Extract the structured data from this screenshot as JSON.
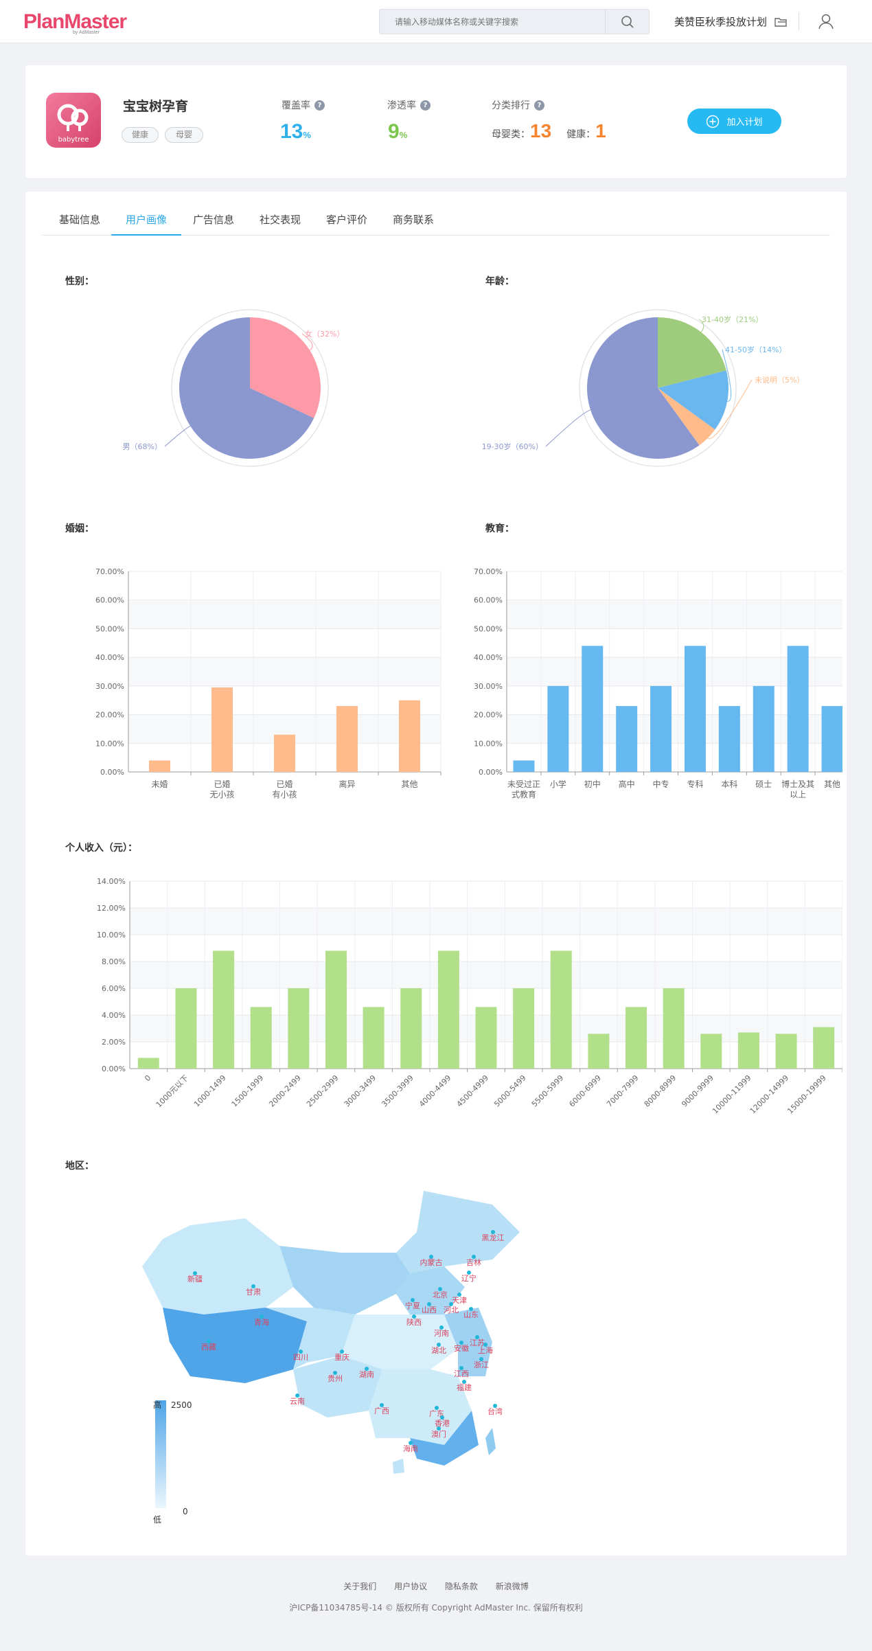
{
  "header": {
    "logo_text": "PlanMaster",
    "logo_sub": "by AdMaster",
    "search_placeholder": "请输入移动媒体名称或关键字搜索",
    "plan_link": "美赞臣秋季投放计划"
  },
  "app": {
    "name": "宝宝树孕育",
    "icon_text": "babytree",
    "tags": [
      "健康",
      "母婴"
    ],
    "coverage_label": "覆盖率",
    "coverage_value": "13",
    "penetration_label": "渗透率",
    "penetration_value": "9",
    "percent": "%",
    "rank_label": "分类排行",
    "rank_cat1": "母婴类：",
    "rank_val1": "13",
    "rank_cat2": "健康：",
    "rank_val2": "1",
    "add_button": "加入计划",
    "colors": {
      "coverage": "#2fb0ec",
      "penetration": "#7cc64e",
      "rank": "#f7842e"
    }
  },
  "tabs": [
    "基础信息",
    "用户画像",
    "广告信息",
    "社交表现",
    "客户评价",
    "商务联系"
  ],
  "active_tab": 1,
  "sections": {
    "gender": "性别：",
    "age": "年龄：",
    "marriage": "婚姻：",
    "education": "教育：",
    "income": "个人收入（元）：",
    "region": "地区："
  },
  "chart_data": [
    {
      "id": "gender",
      "type": "pie",
      "title": "性别：",
      "slices": [
        {
          "label": "女（32%）",
          "value": 32,
          "color": "#fd9aa8"
        },
        {
          "label": "男（68%）",
          "value": 68,
          "color": "#8b98d0"
        }
      ]
    },
    {
      "id": "age",
      "type": "pie",
      "title": "年龄：",
      "slices": [
        {
          "label": "31-40岁（21%）",
          "value": 21,
          "color": "#9fcb7d"
        },
        {
          "label": "41-50岁（14%）",
          "value": 14,
          "color": "#6ab7f0"
        },
        {
          "label": "未说明（5%）",
          "value": 5,
          "color": "#ffbb8a"
        },
        {
          "label": "19-30岁（60%）",
          "value": 60,
          "color": "#8b98d0"
        }
      ]
    },
    {
      "id": "marriage",
      "type": "bar",
      "title": "婚姻：",
      "categories": [
        "未婚",
        "已婚\n无小孩",
        "已婚\n有小孩",
        "离异",
        "其他"
      ],
      "values": [
        4,
        29.5,
        13,
        23,
        25
      ],
      "ylim": [
        0,
        70
      ],
      "yticks": [
        "0.00%",
        "10.00%",
        "20.00%",
        "30.00%",
        "40.00%",
        "50.00%",
        "60.00%",
        "70.00%"
      ],
      "color": "#ffbb8c"
    },
    {
      "id": "education",
      "type": "bar",
      "title": "教育：",
      "categories": [
        "未受过正\n式教育",
        "小学",
        "初中",
        "高中",
        "中专",
        "专科",
        "本科",
        "硕士",
        "博士及其\n以上",
        "其他"
      ],
      "values": [
        4,
        30,
        44,
        23,
        30,
        44,
        23,
        30,
        44,
        23
      ],
      "ylim": [
        0,
        70
      ],
      "yticks": [
        "0.00%",
        "10.00%",
        "20.00%",
        "30.00%",
        "40.00%",
        "50.00%",
        "60.00%",
        "70.00%"
      ],
      "color": "#66b8f1"
    },
    {
      "id": "income",
      "type": "bar",
      "title": "个人收入（元）：",
      "categories": [
        "0",
        "1000元以下",
        "1000-1499",
        "1500-1999",
        "2000-2499",
        "2500-2999",
        "3000-3499",
        "3500-3999",
        "4000-4499",
        "4500-4999",
        "5000-5499",
        "5500-5999",
        "6000-6999",
        "7000-7999",
        "8000-8999",
        "9000-9999",
        "10000-11999",
        "12000-14999",
        "15000-19999"
      ],
      "values": [
        0.8,
        6,
        8.8,
        4.6,
        6,
        8.8,
        4.6,
        6,
        8.8,
        4.6,
        6,
        8.8,
        2.6,
        4.6,
        6,
        2.6,
        2.7,
        2.6,
        3.1
      ],
      "ylim": [
        0,
        14
      ],
      "yticks": [
        "0.00%",
        "2.00%",
        "4.00%",
        "6.00%",
        "8.00%",
        "10.00%",
        "12.00%",
        "14.00%"
      ],
      "color": "#b2e08a"
    }
  ],
  "map": {
    "legend_high": "高",
    "legend_low": "低",
    "legend_max": "2500",
    "legend_min": "0",
    "provinces": [
      "黑龙江",
      "吉林",
      "内蒙古",
      "辽宁",
      "新疆",
      "甘肃",
      "北京",
      "天津",
      "宁夏",
      "山西",
      "河北",
      "山东",
      "青海",
      "陕西",
      "河南",
      "江苏",
      "西藏",
      "四川",
      "重庆",
      "湖北",
      "安徽",
      "上海",
      "浙江",
      "贵州",
      "湖南",
      "江西",
      "云南",
      "福建",
      "广西",
      "广东",
      "台湾",
      "香港",
      "澳门",
      "海南"
    ]
  },
  "footer": {
    "links": [
      "关于我们",
      "用户协议",
      "隐私条款",
      "新浪微博"
    ],
    "copyright": "沪ICP备11034785号-14 © 版权所有 Copyright AdMaster Inc. 保留所有权利"
  }
}
